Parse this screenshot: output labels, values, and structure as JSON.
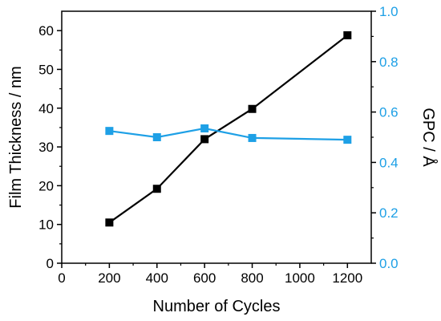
{
  "chart_data": {
    "type": "line",
    "xlabel": "Number of Cycles",
    "ylabel": "Film Thickness / nm",
    "y2label": "GPC / Å",
    "xlim": [
      0,
      1300
    ],
    "ylim": [
      0,
      65
    ],
    "y2lim": [
      0,
      1.0
    ],
    "xticks": [
      "0",
      "200",
      "400",
      "600",
      "800",
      "1000",
      "1200"
    ],
    "yticks": [
      "0",
      "10",
      "20",
      "30",
      "40",
      "50",
      "60"
    ],
    "y2ticks": [
      "0.0",
      "0.2",
      "0.4",
      "0.6",
      "0.8",
      "1.0"
    ],
    "grid": false,
    "legend": "none",
    "series": [
      {
        "axis": "left",
        "color": "#000000",
        "marker": "square",
        "x": [
          200,
          400,
          600,
          800,
          1200
        ],
        "y": [
          10.5,
          19.2,
          32.0,
          39.8,
          58.8
        ]
      },
      {
        "axis": "right",
        "color": "#1ea0e6",
        "marker": "square",
        "x": [
          200,
          400,
          600,
          800,
          1200
        ],
        "y": [
          0.525,
          0.5,
          0.535,
          0.497,
          0.49
        ]
      }
    ]
  }
}
